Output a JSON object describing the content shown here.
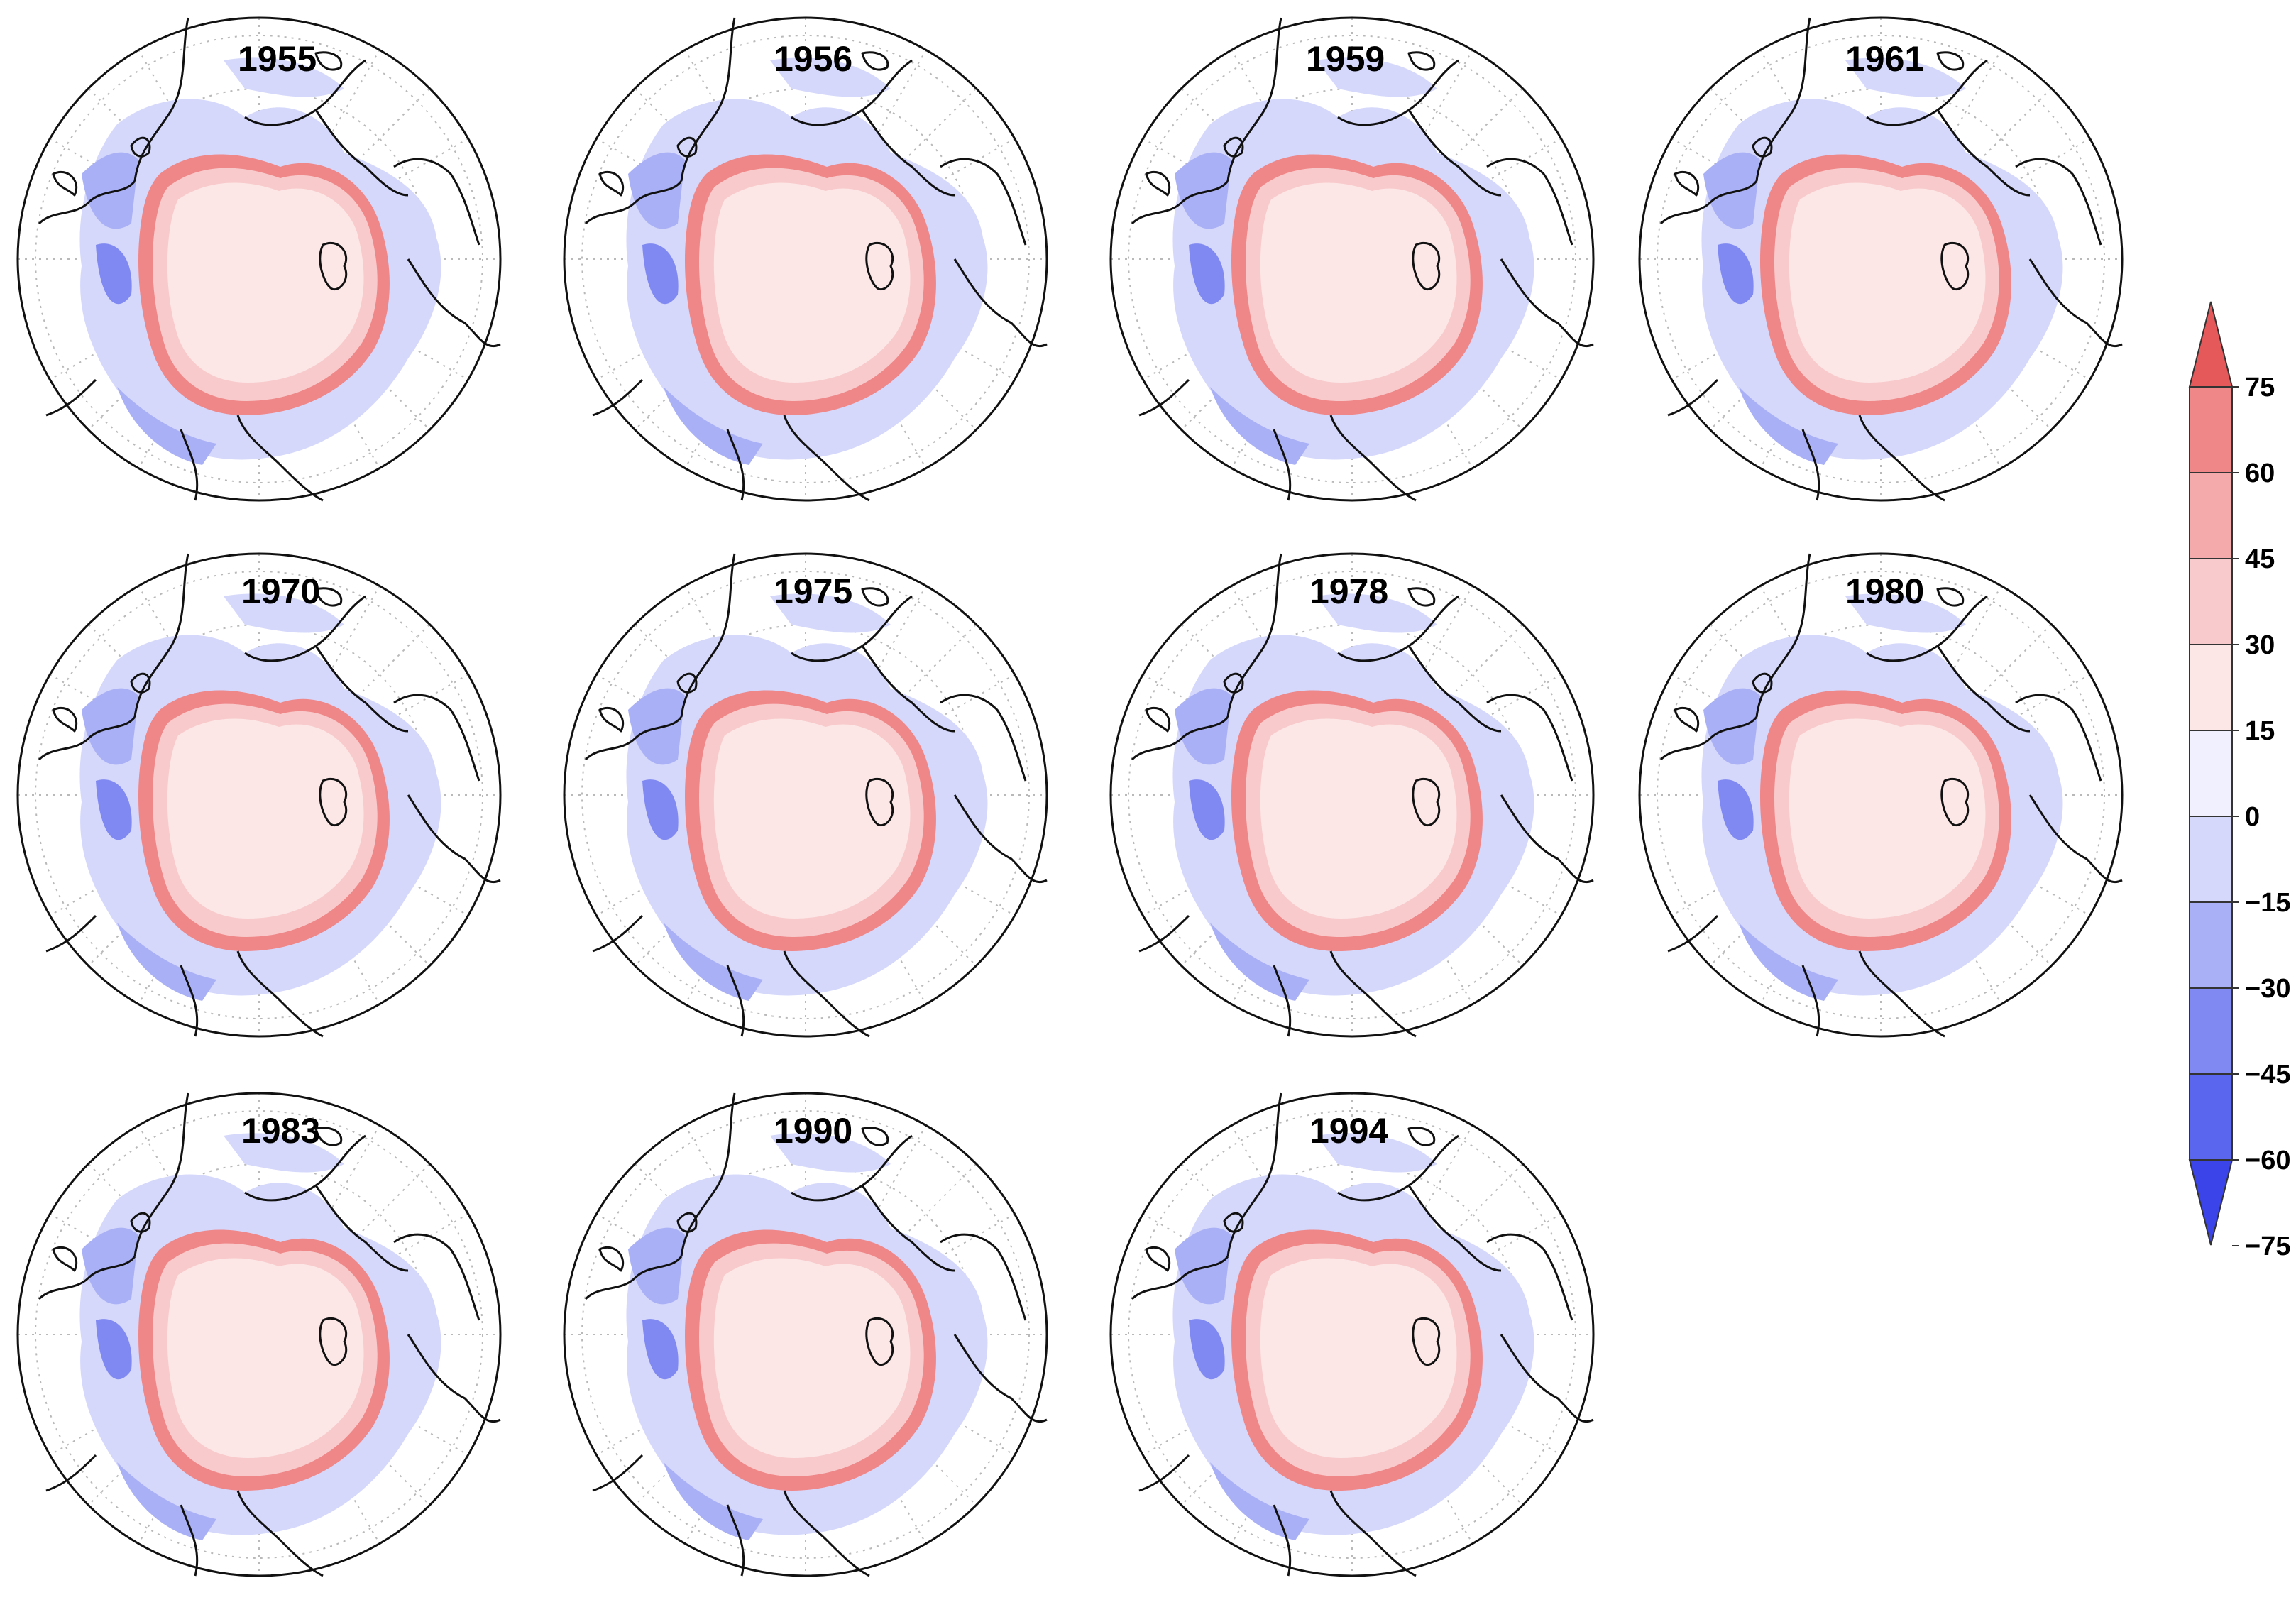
{
  "figure": {
    "panels": [
      {
        "year": "1955"
      },
      {
        "year": "1956"
      },
      {
        "year": "1959"
      },
      {
        "year": "1961"
      },
      {
        "year": "1970"
      },
      {
        "year": "1975"
      },
      {
        "year": "1978"
      },
      {
        "year": "1980"
      },
      {
        "year": "1983"
      },
      {
        "year": "1990"
      },
      {
        "year": "1994"
      }
    ],
    "colorbar": {
      "levels": [
        "75",
        "60",
        "45",
        "30",
        "15",
        "0",
        "−15",
        "−30",
        "−45",
        "−60",
        "−75"
      ],
      "colors": [
        "#e5595b",
        "#ef8688",
        "#f4a9aa",
        "#f8cacb",
        "#fce6e6",
        "#f0f0ff",
        "#d5d8fb",
        "#aab0f5",
        "#8089f1",
        "#5b66ee",
        "#3b44e8"
      ]
    }
  }
}
